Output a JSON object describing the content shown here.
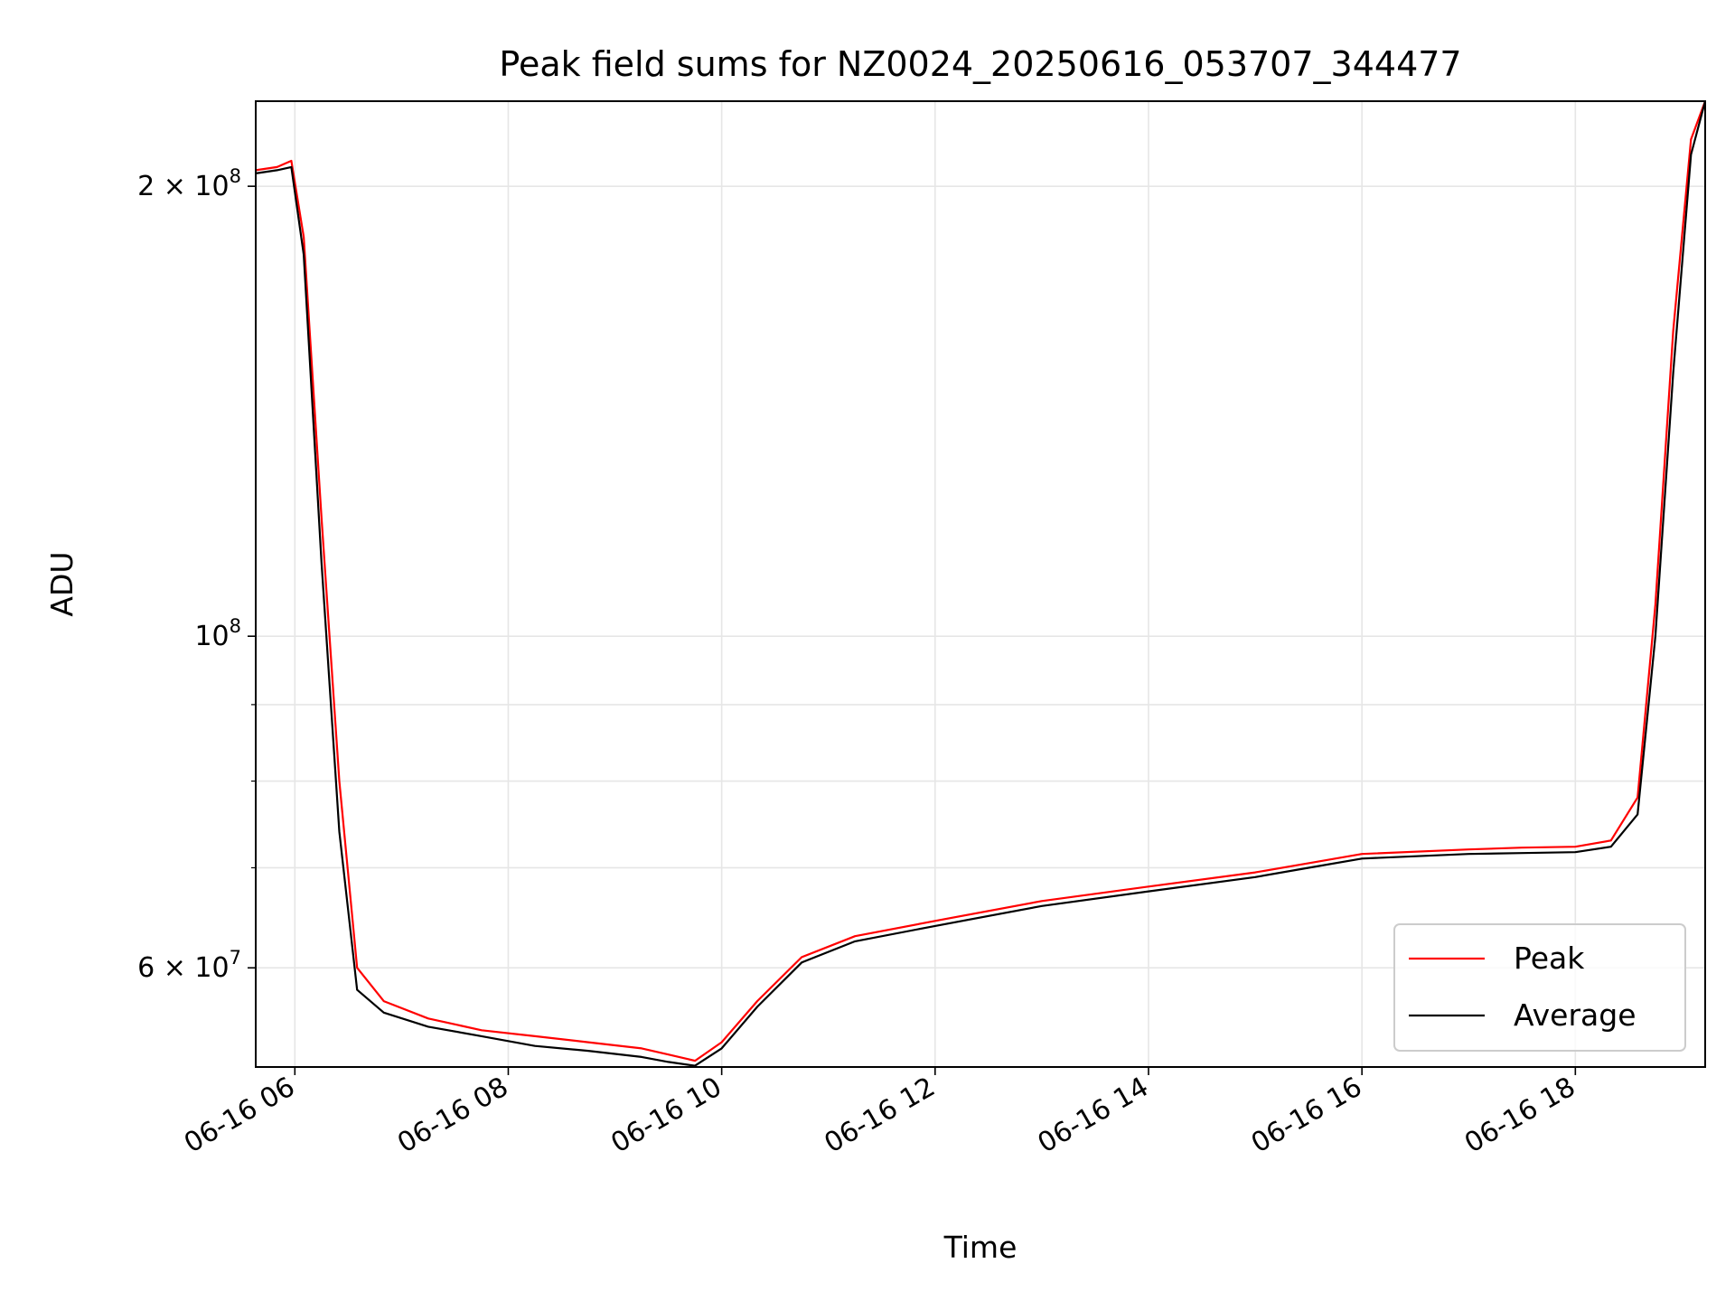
{
  "chart_data": {
    "type": "line",
    "title": "Peak field sums for NZ0024_20250616_053707_344477",
    "xlabel": "Time",
    "ylabel": "ADU",
    "yscale": "log",
    "ylim": [
      51500000,
      228000000
    ],
    "xlim": [
      "06-16 05:38",
      "06-16 19:13"
    ],
    "x_ticks": [
      "06-16 06",
      "06-16 08",
      "06-16 10",
      "06-16 12",
      "06-16 14",
      "06-16 16",
      "06-16 18"
    ],
    "y_ticks": [
      {
        "value": 200000000,
        "base": "2 × 10",
        "exp": "8"
      },
      {
        "value": 100000000,
        "base": "10",
        "exp": "8"
      },
      {
        "value": 60000000,
        "base": "6 × 10",
        "exp": "7"
      }
    ],
    "grid": true,
    "legend_position": "lower-right",
    "series": [
      {
        "name": "Peak",
        "color": "#ff0000",
        "x": [
          "06-16 05:38",
          "06-16 05:50",
          "06-16 05:58",
          "06-16 06:05",
          "06-16 06:15",
          "06-16 06:25",
          "06-16 06:35",
          "06-16 06:50",
          "06-16 07:15",
          "06-16 07:45",
          "06-16 08:15",
          "06-16 08:45",
          "06-16 09:15",
          "06-16 09:30",
          "06-16 09:45",
          "06-16 10:00",
          "06-16 10:20",
          "06-16 10:45",
          "06-16 11:15",
          "06-16 12:00",
          "06-16 13:00",
          "06-16 14:00",
          "06-16 15:00",
          "06-16 15:30",
          "06-16 16:00",
          "06-16 17:00",
          "06-16 17:30",
          "06-16 18:00",
          "06-16 18:20",
          "06-16 18:35",
          "06-16 18:45",
          "06-16 18:55",
          "06-16 19:05",
          "06-16 19:13"
        ],
        "y": [
          205000000,
          206000000,
          208000000,
          185000000,
          120000000,
          80000000,
          60000000,
          57000000,
          55500000,
          54500000,
          54000000,
          53500000,
          53000000,
          52500000,
          52000000,
          53500000,
          57000000,
          61000000,
          63000000,
          64500000,
          66500000,
          68000000,
          69500000,
          70500000,
          71500000,
          72000000,
          72200000,
          72300000,
          73000000,
          78000000,
          105000000,
          160000000,
          215000000,
          228000000
        ]
      },
      {
        "name": "Average",
        "color": "#000000",
        "x": [
          "06-16 05:38",
          "06-16 05:50",
          "06-16 05:58",
          "06-16 06:05",
          "06-16 06:15",
          "06-16 06:25",
          "06-16 06:35",
          "06-16 06:50",
          "06-16 07:15",
          "06-16 07:45",
          "06-16 08:15",
          "06-16 08:45",
          "06-16 09:15",
          "06-16 09:30",
          "06-16 09:45",
          "06-16 10:00",
          "06-16 10:20",
          "06-16 10:45",
          "06-16 11:15",
          "06-16 12:00",
          "06-16 13:00",
          "06-16 14:00",
          "06-16 15:00",
          "06-16 15:30",
          "06-16 16:00",
          "06-16 17:00",
          "06-16 17:30",
          "06-16 18:00",
          "06-16 18:20",
          "06-16 18:35",
          "06-16 18:45",
          "06-16 18:55",
          "06-16 19:05",
          "06-16 19:13"
        ],
        "y": [
          204000000,
          205000000,
          206000000,
          180000000,
          112000000,
          74000000,
          58000000,
          56000000,
          54800000,
          54000000,
          53200000,
          52800000,
          52300000,
          51900000,
          51600000,
          53000000,
          56500000,
          60500000,
          62500000,
          64000000,
          66000000,
          67500000,
          69000000,
          70000000,
          71000000,
          71500000,
          71600000,
          71700000,
          72300000,
          76000000,
          100000000,
          150000000,
          210000000,
          228000000
        ]
      }
    ]
  }
}
